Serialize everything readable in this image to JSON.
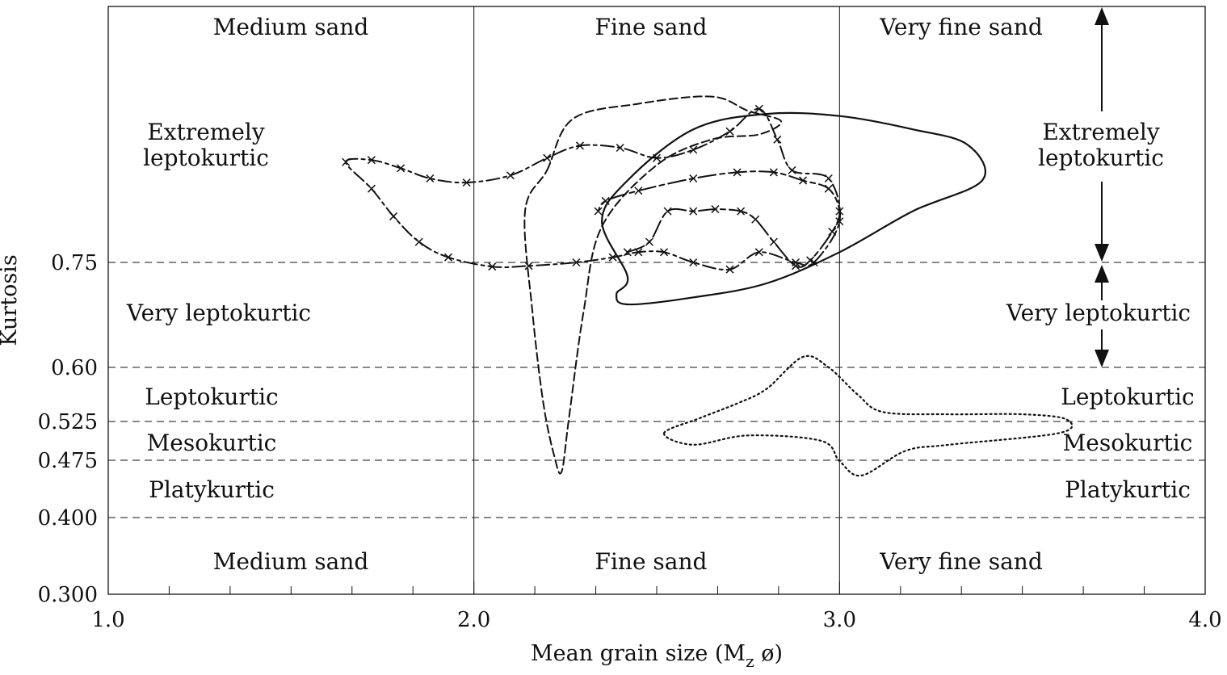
{
  "chart_data": {
    "type": "line",
    "title": "",
    "xlabel": "Mean grain size (M",
    "xlabel_sub": "z",
    "xlabel_suffix": " ø)",
    "ylabel": "Kurtosis",
    "xlim": [
      1.0,
      4.0
    ],
    "ylim": [
      0.3,
      1.0
    ],
    "x_ticks": [
      "1.0",
      "2.0",
      "3.0",
      "4.0"
    ],
    "y_ticks": [
      "0.300",
      "0.400",
      "0.475",
      "0.525",
      "0.60",
      "0.75"
    ],
    "grid": false,
    "zone_labels_top": [
      "Medium sand",
      "Fine sand",
      "Very fine sand"
    ],
    "zone_labels_bottom": [
      "Medium sand",
      "Fine sand",
      "Very fine sand"
    ],
    "kurtosis_classes_left": {
      "extremely_line1": "Extremely",
      "extremely_line2": "leptokurtic",
      "very": "Very leptokurtic",
      "lepto": "Leptokurtic",
      "meso": "Mesokurtic",
      "platy": "Platykurtic"
    },
    "kurtosis_classes_right": {
      "extremely_line1": "Extremely",
      "extremely_line2": "leptokurtic",
      "very": "Very leptokurtic",
      "lepto": "Leptokurtic",
      "meso": "Mesokurtic",
      "platy": "Platykurtic"
    },
    "series": [
      {
        "style": "solid",
        "closed": true,
        "points": [
          [
            2.35,
            0.79
          ],
          [
            2.42,
            0.83
          ],
          [
            2.6,
            0.88
          ],
          [
            2.8,
            0.895
          ],
          [
            3.0,
            0.893
          ],
          [
            3.2,
            0.88
          ],
          [
            3.35,
            0.865
          ],
          [
            3.39,
            0.83
          ],
          [
            3.2,
            0.8
          ],
          [
            3.0,
            0.76
          ],
          [
            2.8,
            0.72
          ],
          [
            2.6,
            0.7
          ],
          [
            2.42,
            0.69
          ],
          [
            2.39,
            0.705
          ],
          [
            2.42,
            0.73
          ]
        ]
      },
      {
        "style": "dash",
        "closed": true,
        "points": [
          [
            2.2,
            0.84
          ],
          [
            2.27,
            0.89
          ],
          [
            2.45,
            0.905
          ],
          [
            2.65,
            0.912
          ],
          [
            2.75,
            0.898
          ],
          [
            2.84,
            0.888
          ],
          [
            2.78,
            0.875
          ],
          [
            2.65,
            0.87
          ],
          [
            2.5,
            0.845
          ],
          [
            2.35,
            0.785
          ],
          [
            2.3,
            0.68
          ],
          [
            2.26,
            0.53
          ],
          [
            2.24,
            0.46
          ],
          [
            2.22,
            0.48
          ],
          [
            2.19,
            0.55
          ],
          [
            2.16,
            0.68
          ],
          [
            2.14,
            0.8
          ]
        ]
      },
      {
        "style": "dashdot-x",
        "closed": true,
        "points": [
          [
            1.65,
            0.848
          ],
          [
            1.72,
            0.85
          ],
          [
            1.8,
            0.842
          ],
          [
            1.88,
            0.832
          ],
          [
            1.98,
            0.828
          ],
          [
            2.1,
            0.835
          ],
          [
            2.2,
            0.852
          ],
          [
            2.29,
            0.864
          ],
          [
            2.4,
            0.862
          ],
          [
            2.5,
            0.852
          ],
          [
            2.6,
            0.86
          ],
          [
            2.7,
            0.878
          ],
          [
            2.78,
            0.9
          ],
          [
            2.83,
            0.87
          ],
          [
            2.87,
            0.84
          ],
          [
            2.97,
            0.832
          ],
          [
            3.0,
            0.79
          ],
          [
            2.93,
            0.75
          ],
          [
            2.88,
            0.75
          ],
          [
            2.78,
            0.76
          ],
          [
            2.7,
            0.74
          ],
          [
            2.6,
            0.75
          ],
          [
            2.52,
            0.76
          ],
          [
            2.45,
            0.76
          ],
          [
            2.38,
            0.755
          ],
          [
            2.28,
            0.75
          ],
          [
            2.15,
            0.745
          ],
          [
            2.05,
            0.744
          ],
          [
            1.93,
            0.755
          ],
          [
            1.85,
            0.77
          ],
          [
            1.78,
            0.795
          ],
          [
            1.72,
            0.822
          ]
        ]
      },
      {
        "style": "longdash-x",
        "closed": false,
        "points": [
          [
            2.42,
            0.76
          ],
          [
            2.48,
            0.77
          ],
          [
            2.53,
            0.8
          ],
          [
            2.6,
            0.8
          ],
          [
            2.66,
            0.802
          ],
          [
            2.73,
            0.8
          ],
          [
            2.77,
            0.792
          ],
          [
            2.82,
            0.77
          ],
          [
            2.88,
            0.745
          ],
          [
            2.92,
            0.752
          ],
          [
            2.98,
            0.78
          ],
          [
            3.0,
            0.8
          ],
          [
            2.97,
            0.822
          ],
          [
            2.9,
            0.83
          ],
          [
            2.82,
            0.838
          ],
          [
            2.72,
            0.838
          ],
          [
            2.6,
            0.832
          ],
          [
            2.45,
            0.82
          ],
          [
            2.36,
            0.81
          ],
          [
            2.34,
            0.8
          ]
        ]
      },
      {
        "style": "dotted",
        "closed": true,
        "points": [
          [
            2.52,
            0.51
          ],
          [
            2.62,
            0.53
          ],
          [
            2.72,
            0.55
          ],
          [
            2.8,
            0.57
          ],
          [
            2.9,
            0.615
          ],
          [
            2.97,
            0.6
          ],
          [
            3.05,
            0.562
          ],
          [
            3.12,
            0.538
          ],
          [
            3.3,
            0.535
          ],
          [
            3.5,
            0.535
          ],
          [
            3.62,
            0.528
          ],
          [
            3.6,
            0.51
          ],
          [
            3.3,
            0.495
          ],
          [
            3.18,
            0.487
          ],
          [
            3.06,
            0.455
          ],
          [
            3.0,
            0.474
          ],
          [
            2.95,
            0.5
          ],
          [
            2.75,
            0.507
          ],
          [
            2.6,
            0.495
          ]
        ]
      }
    ]
  }
}
